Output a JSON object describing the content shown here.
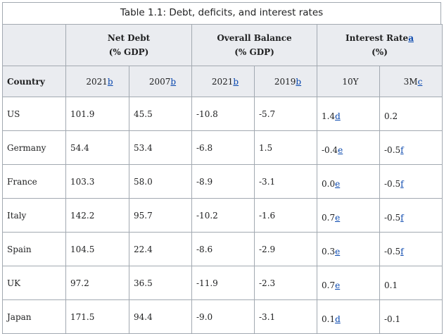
{
  "caption": "Table 1.1: Debt, deficits, and interest rates",
  "groups": {
    "net_debt": {
      "line1": "Net Debt",
      "line2": "(% GDP)"
    },
    "overall_balance": {
      "line1": "Overall Balance",
      "line2": "(% GDP)"
    },
    "interest_rate": {
      "line1": "Interest Rate",
      "note": "a",
      "line2": "(%)"
    }
  },
  "subheaders": {
    "country": "Country",
    "nd_2021": {
      "label": "2021",
      "note": "b"
    },
    "nd_2007": {
      "label": "2007",
      "note": "b"
    },
    "ob_2021": {
      "label": "2021",
      "note": "b"
    },
    "ob_2019": {
      "label": "2019",
      "note": "b"
    },
    "ir_10y": {
      "label": "10Y"
    },
    "ir_3m": {
      "label": "3M",
      "note": "c"
    }
  },
  "rows": [
    {
      "country": "US",
      "nd2021": "101.9",
      "nd2007": "45.5",
      "ob2021": "-10.8",
      "ob2019": "-5.7",
      "y10": "1.4",
      "y10n": "d",
      "m3": "0.2",
      "m3n": ""
    },
    {
      "country": "Germany",
      "nd2021": "54.4",
      "nd2007": "53.4",
      "ob2021": "-6.8",
      "ob2019": "1.5",
      "y10": "-0.4",
      "y10n": "e",
      "m3": "-0.5",
      "m3n": "f"
    },
    {
      "country": "France",
      "nd2021": "103.3",
      "nd2007": "58.0",
      "ob2021": "-8.9",
      "ob2019": "-3.1",
      "y10": "0.0",
      "y10n": "e",
      "m3": "-0.5",
      "m3n": "f"
    },
    {
      "country": "Italy",
      "nd2021": "142.2",
      "nd2007": "95.7",
      "ob2021": "-10.2",
      "ob2019": "-1.6",
      "y10": "0.7",
      "y10n": "e",
      "m3": "-0.5",
      "m3n": "f"
    },
    {
      "country": "Spain",
      "nd2021": "104.5",
      "nd2007": "22.4",
      "ob2021": "-8.6",
      "ob2019": "-2.9",
      "y10": "0.3",
      "y10n": "e",
      "m3": "-0.5",
      "m3n": "f"
    },
    {
      "country": "UK",
      "nd2021": "97.2",
      "nd2007": "36.5",
      "ob2021": "-11.9",
      "ob2019": "-2.3",
      "y10": "0.7",
      "y10n": "e",
      "m3": "0.1",
      "m3n": ""
    },
    {
      "country": "Japan",
      "nd2021": "171.5",
      "nd2007": "94.4",
      "ob2021": "-9.0",
      "ob2019": "-3.1",
      "y10": "0.1",
      "y10n": "d",
      "m3": "-0.1",
      "m3n": ""
    }
  ]
}
